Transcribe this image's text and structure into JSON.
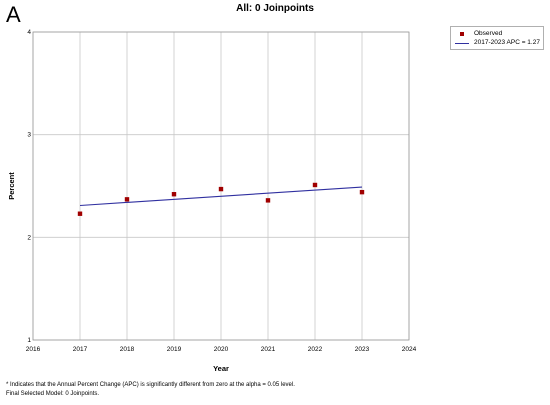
{
  "panel_label": "A",
  "chart_data": {
    "type": "scatter",
    "title": "All: 0 Joinpoints",
    "xlabel": "Year",
    "ylabel": "Percent",
    "xlim": [
      2016,
      2024
    ],
    "ylim": [
      1,
      4
    ],
    "xticks": [
      2016,
      2017,
      2018,
      2019,
      2020,
      2021,
      2022,
      2023,
      2024
    ],
    "yticks": [
      1,
      2,
      3,
      4
    ],
    "grid": true,
    "legend_position": "top-right",
    "colors": {
      "observed": "#a00000",
      "trend": "#3030a0",
      "grid": "#c8c8c8"
    },
    "series": [
      {
        "name": "Observed",
        "kind": "points",
        "x": [
          2017,
          2018,
          2019,
          2020,
          2021,
          2022,
          2023
        ],
        "y": [
          2.23,
          2.37,
          2.42,
          2.47,
          2.36,
          2.51,
          2.44
        ]
      },
      {
        "name": "2017-2023 APC  = 1.27",
        "kind": "line",
        "x": [
          2017,
          2023
        ],
        "y": [
          2.31,
          2.49
        ]
      }
    ]
  },
  "legend": {
    "observed_label": "Observed",
    "trend_label": "2017-2023 APC  = 1.27"
  },
  "footnotes": {
    "line1": "* Indicates that the Annual Percent Change (APC) is significantly different from zero at the alpha = 0.05 level.",
    "line2": "Final Selected Model: 0 Joinpoints."
  }
}
